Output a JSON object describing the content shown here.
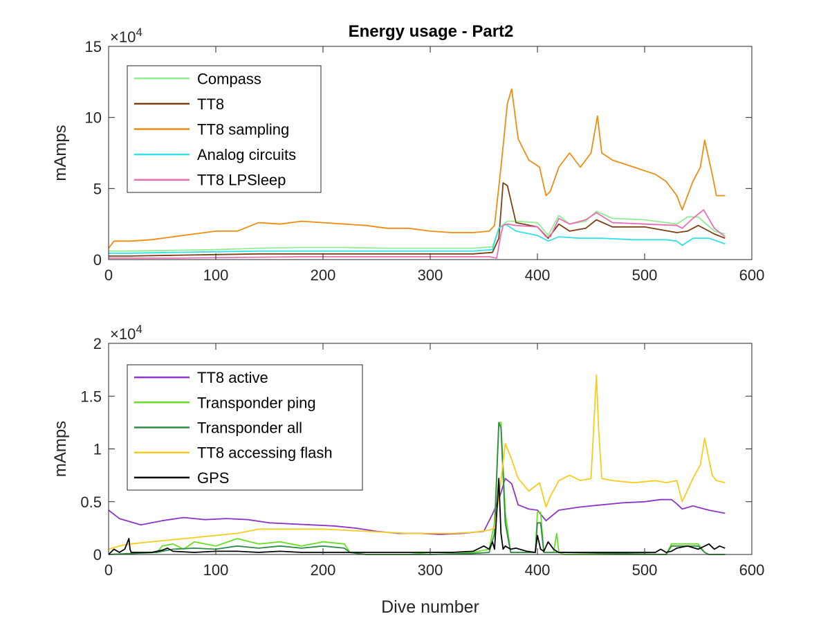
{
  "figure_title": "Energy usage - Part2",
  "chart_data": [
    {
      "type": "line",
      "title": "Energy usage - Part2",
      "xlabel": "",
      "ylabel": "mAmps",
      "xlim": [
        0,
        600
      ],
      "ylim": [
        0,
        15
      ],
      "y_multiplier": "×10",
      "y_exponent": "4",
      "x_ticks": [
        0,
        100,
        200,
        300,
        400,
        500,
        600
      ],
      "y_ticks": [
        0,
        5,
        10,
        15
      ],
      "grid": false,
      "legend_position": "top-left",
      "series": [
        {
          "name": "Compass",
          "color": "#90ee90",
          "x": [
            0,
            20,
            60,
            100,
            140,
            180,
            220,
            260,
            300,
            340,
            358,
            364,
            372,
            380,
            400,
            410,
            420,
            430,
            445,
            455,
            470,
            500,
            530,
            540,
            550,
            565,
            575
          ],
          "y": [
            0.6,
            0.6,
            0.65,
            0.7,
            0.8,
            0.85,
            0.85,
            0.8,
            0.8,
            0.8,
            0.9,
            2.2,
            2.7,
            2.7,
            2.6,
            1.7,
            3.1,
            2.5,
            2.7,
            3.4,
            2.9,
            2.8,
            2.5,
            3.0,
            3.0,
            2.0,
            1.8
          ]
        },
        {
          "name": "TT8",
          "color": "#7b3f10",
          "x": [
            0,
            20,
            60,
            100,
            140,
            180,
            220,
            260,
            300,
            340,
            358,
            364,
            368,
            372,
            380,
            400,
            410,
            420,
            430,
            445,
            455,
            470,
            500,
            530,
            540,
            550,
            565,
            575
          ],
          "y": [
            0.25,
            0.25,
            0.3,
            0.35,
            0.4,
            0.4,
            0.4,
            0.4,
            0.4,
            0.4,
            0.5,
            1.5,
            5.4,
            5.2,
            2.6,
            2.3,
            1.5,
            2.5,
            2.0,
            2.2,
            2.8,
            2.3,
            2.3,
            1.9,
            2.0,
            2.4,
            1.8,
            1.5
          ]
        },
        {
          "name": "TT8 sampling",
          "color": "#f08c10",
          "x": [
            0,
            5,
            20,
            40,
            60,
            80,
            100,
            120,
            140,
            160,
            180,
            200,
            220,
            240,
            260,
            280,
            300,
            320,
            340,
            355,
            360,
            366,
            372,
            376,
            382,
            392,
            402,
            408,
            412,
            420,
            430,
            440,
            450,
            456,
            460,
            470,
            490,
            510,
            520,
            530,
            535,
            545,
            552,
            556,
            563,
            567,
            575
          ],
          "y": [
            0.8,
            1.3,
            1.3,
            1.4,
            1.6,
            1.8,
            2.0,
            2.0,
            2.6,
            2.5,
            2.7,
            2.6,
            2.5,
            2.4,
            2.2,
            2.2,
            2.0,
            1.9,
            1.9,
            2.0,
            2.4,
            6.5,
            11.0,
            12.0,
            8.5,
            7.0,
            6.5,
            4.5,
            4.8,
            6.5,
            7.5,
            6.5,
            7.5,
            10.1,
            7.5,
            7.0,
            6.5,
            6.0,
            5.5,
            4.5,
            3.5,
            5.5,
            6.5,
            8.4,
            6.0,
            4.5,
            4.5
          ]
        },
        {
          "name": "Analog circuits",
          "color": "#33e0e6",
          "x": [
            0,
            20,
            60,
            100,
            140,
            180,
            220,
            260,
            300,
            340,
            358,
            364,
            370,
            380,
            400,
            410,
            420,
            440,
            460,
            490,
            520,
            530,
            535,
            545,
            560,
            575
          ],
          "y": [
            0.45,
            0.45,
            0.5,
            0.55,
            0.6,
            0.6,
            0.6,
            0.6,
            0.6,
            0.6,
            0.7,
            2.2,
            2.5,
            2.0,
            1.7,
            1.3,
            1.6,
            1.5,
            1.5,
            1.4,
            1.4,
            1.3,
            1.0,
            1.5,
            1.5,
            1.1
          ]
        },
        {
          "name": "TT8 LPSleep",
          "color": "#e96fb4",
          "x": [
            0,
            60,
            120,
            180,
            240,
            300,
            340,
            355,
            362,
            366,
            368,
            372,
            380,
            400,
            408,
            412,
            420,
            430,
            445,
            455,
            470,
            500,
            530,
            535,
            545,
            555,
            565,
            575
          ],
          "y": [
            0.1,
            0.1,
            0.15,
            0.2,
            0.2,
            0.2,
            0.2,
            0.2,
            0.1,
            1.8,
            2.4,
            2.5,
            2.4,
            2.3,
            1.6,
            1.6,
            2.9,
            2.5,
            2.8,
            3.3,
            2.6,
            2.5,
            2.4,
            2.2,
            2.9,
            3.5,
            2.2,
            1.6
          ]
        }
      ]
    },
    {
      "type": "line",
      "title": "",
      "xlabel": "Dive number",
      "ylabel": "mAmps",
      "xlim": [
        0,
        600
      ],
      "ylim": [
        0,
        2
      ],
      "y_multiplier": "×10",
      "y_exponent": "4",
      "x_ticks": [
        0,
        100,
        200,
        300,
        400,
        500,
        600
      ],
      "y_ticks": [
        0,
        0.5,
        1,
        1.5,
        2
      ],
      "y_tick_labels": [
        "0",
        "0.5",
        "1",
        "1.5",
        "2"
      ],
      "grid": false,
      "legend_position": "top-left",
      "series": [
        {
          "name": "TT8 active",
          "color": "#8e35c8",
          "x": [
            0,
            10,
            30,
            50,
            70,
            90,
            110,
            130,
            150,
            170,
            190,
            210,
            230,
            250,
            270,
            290,
            310,
            330,
            350,
            358,
            364,
            370,
            376,
            382,
            392,
            400,
            408,
            420,
            440,
            460,
            480,
            500,
            515,
            525,
            530,
            535,
            545,
            560,
            575
          ],
          "y": [
            0.42,
            0.34,
            0.28,
            0.32,
            0.35,
            0.33,
            0.34,
            0.33,
            0.3,
            0.29,
            0.28,
            0.27,
            0.25,
            0.22,
            0.2,
            0.2,
            0.19,
            0.2,
            0.22,
            0.38,
            0.52,
            0.72,
            0.67,
            0.47,
            0.43,
            0.42,
            0.32,
            0.42,
            0.45,
            0.47,
            0.49,
            0.5,
            0.52,
            0.52,
            0.48,
            0.43,
            0.46,
            0.42,
            0.39
          ]
        },
        {
          "name": "Transponder ping",
          "color": "#66e022",
          "x": [
            0,
            45,
            50,
            60,
            70,
            80,
            100,
            120,
            140,
            160,
            180,
            200,
            220,
            225,
            240,
            280,
            300,
            340,
            355,
            360,
            364,
            366,
            370,
            375,
            380,
            390,
            398,
            400,
            403,
            406,
            410,
            415,
            418,
            420,
            425,
            500,
            520,
            525,
            530,
            550,
            556,
            560,
            575
          ],
          "y": [
            0.0,
            0.02,
            0.08,
            0.1,
            0.05,
            0.12,
            0.08,
            0.15,
            0.1,
            0.12,
            0.08,
            0.12,
            0.1,
            0.02,
            0.0,
            0.0,
            0.02,
            0.02,
            0.05,
            0.3,
            1.25,
            1.25,
            0.4,
            0.02,
            0.02,
            0.02,
            0.02,
            0.4,
            0.4,
            0.02,
            0.02,
            0.02,
            0.2,
            0.02,
            0.0,
            0.0,
            0.0,
            0.1,
            0.1,
            0.1,
            0.02,
            0.0,
            0.0
          ]
        },
        {
          "name": "Transponder all",
          "color": "#2e8b47",
          "x": [
            0,
            45,
            60,
            80,
            100,
            120,
            140,
            160,
            180,
            200,
            220,
            225,
            240,
            300,
            340,
            355,
            360,
            364,
            366,
            370,
            375,
            380,
            398,
            400,
            403,
            406,
            420,
            520,
            525,
            550,
            556,
            560,
            575
          ],
          "y": [
            0.0,
            0.02,
            0.05,
            0.06,
            0.05,
            0.08,
            0.06,
            0.08,
            0.06,
            0.08,
            0.06,
            0.02,
            0.0,
            0.0,
            0.01,
            0.02,
            0.2,
            1.25,
            1.2,
            0.3,
            0.02,
            0.02,
            0.02,
            0.3,
            0.3,
            0.02,
            0.02,
            0.0,
            0.08,
            0.08,
            0.02,
            0.0,
            0.0
          ]
        },
        {
          "name": "TT8 accessing flash",
          "color": "#f6cd1f",
          "x": [
            0,
            10,
            20,
            40,
            60,
            80,
            100,
            120,
            140,
            160,
            180,
            200,
            220,
            240,
            260,
            280,
            300,
            320,
            340,
            355,
            360,
            366,
            370,
            376,
            382,
            392,
            402,
            408,
            412,
            420,
            430,
            440,
            450,
            455,
            457,
            460,
            470,
            490,
            510,
            520,
            530,
            535,
            545,
            552,
            556,
            563,
            567,
            575
          ],
          "y": [
            0.05,
            0.08,
            0.1,
            0.12,
            0.14,
            0.16,
            0.18,
            0.2,
            0.24,
            0.24,
            0.24,
            0.24,
            0.23,
            0.22,
            0.21,
            0.2,
            0.2,
            0.2,
            0.21,
            0.23,
            0.25,
            0.7,
            1.05,
            0.9,
            0.72,
            0.6,
            0.68,
            0.45,
            0.55,
            0.7,
            0.75,
            0.7,
            0.72,
            1.7,
            1.2,
            0.72,
            0.7,
            0.68,
            0.7,
            0.68,
            0.7,
            0.5,
            0.72,
            0.85,
            1.1,
            0.75,
            0.7,
            0.68
          ]
        },
        {
          "name": "GPS",
          "color": "#000000",
          "x": [
            0,
            5,
            10,
            15,
            19,
            20,
            21,
            30,
            40,
            50,
            55,
            60,
            80,
            100,
            120,
            140,
            160,
            180,
            200,
            220,
            240,
            260,
            280,
            300,
            320,
            340,
            350,
            355,
            358,
            360,
            364,
            366,
            368,
            370,
            375,
            380,
            390,
            398,
            400,
            403,
            406,
            410,
            415,
            418,
            420,
            430,
            460,
            480,
            500,
            510,
            515,
            520,
            525,
            530,
            540,
            550,
            560,
            565,
            570,
            575
          ],
          "y": [
            0.0,
            0.05,
            0.02,
            0.05,
            0.15,
            0.05,
            0.02,
            0.02,
            0.02,
            0.04,
            0.06,
            0.03,
            0.02,
            0.03,
            0.03,
            0.02,
            0.03,
            0.02,
            0.02,
            0.02,
            0.02,
            0.02,
            0.02,
            0.02,
            0.02,
            0.03,
            0.08,
            0.05,
            0.12,
            0.05,
            0.72,
            0.2,
            0.05,
            0.08,
            0.05,
            0.06,
            0.03,
            0.02,
            0.18,
            0.05,
            0.03,
            0.12,
            0.05,
            0.03,
            0.02,
            0.02,
            0.02,
            0.02,
            0.02,
            0.02,
            0.05,
            0.02,
            0.03,
            0.06,
            0.08,
            0.05,
            0.1,
            0.05,
            0.08,
            0.06
          ]
        }
      ]
    }
  ]
}
